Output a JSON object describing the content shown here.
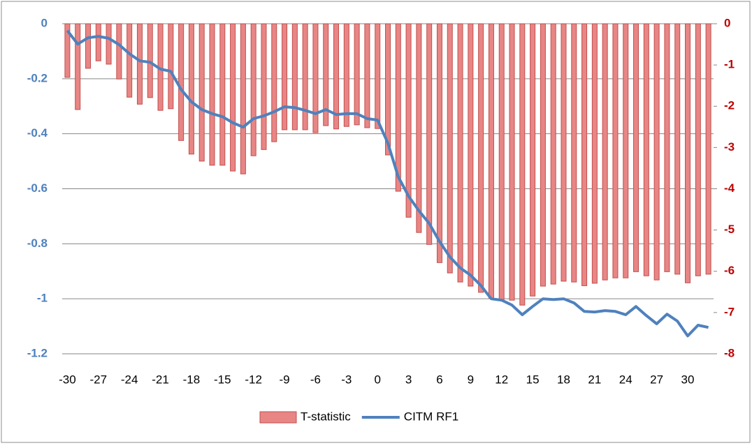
{
  "chart_data": {
    "type": "bar-line",
    "categories": [
      -30,
      null,
      null,
      -27,
      null,
      null,
      -24,
      null,
      null,
      -21,
      null,
      null,
      -18,
      null,
      null,
      -15,
      null,
      null,
      -12,
      null,
      null,
      -9,
      null,
      null,
      -6,
      null,
      null,
      -3,
      null,
      null,
      0,
      null,
      null,
      3,
      null,
      null,
      6,
      null,
      null,
      9,
      null,
      null,
      12,
      null,
      null,
      15,
      null,
      null,
      18,
      null,
      null,
      21,
      null,
      null,
      24,
      null,
      null,
      27,
      null,
      null,
      30,
      null,
      null
    ],
    "series": [
      {
        "name": "T-statistic",
        "type": "bar",
        "axis": "y2",
        "color": "#e88585",
        "edge": "#c0504d",
        "values": [
          -1.3,
          -2.08,
          -1.08,
          -0.9,
          -0.98,
          -1.34,
          -1.78,
          -1.95,
          -1.79,
          -2.1,
          -2.06,
          -2.83,
          -3.16,
          -3.33,
          -3.43,
          -3.43,
          -3.57,
          -3.64,
          -3.2,
          -3.05,
          -2.86,
          -2.57,
          -2.57,
          -2.57,
          -2.64,
          -2.47,
          -2.55,
          -2.49,
          -2.45,
          -2.52,
          -2.54,
          -3.18,
          -4.06,
          -4.69,
          -5.06,
          -5.35,
          -5.79,
          -6.04,
          -6.26,
          -6.36,
          -6.51,
          -6.65,
          -6.68,
          -6.7,
          -6.82,
          -6.6,
          -6.36,
          -6.31,
          -6.24,
          -6.26,
          -6.35,
          -6.29,
          -6.21,
          -6.16,
          -6.16,
          -6.01,
          -6.11,
          -6.21,
          -6.01,
          -6.07,
          -6.28,
          -6.11,
          -6.07
        ]
      },
      {
        "name": "CITM RF1",
        "type": "line",
        "axis": "y",
        "color": "#4f81bd",
        "values": [
          -0.025,
          -0.074,
          -0.051,
          -0.046,
          -0.053,
          -0.076,
          -0.109,
          -0.135,
          -0.14,
          -0.165,
          -0.173,
          -0.239,
          -0.284,
          -0.312,
          -0.327,
          -0.338,
          -0.36,
          -0.376,
          -0.345,
          -0.335,
          -0.32,
          -0.302,
          -0.305,
          -0.315,
          -0.327,
          -0.312,
          -0.33,
          -0.327,
          -0.327,
          -0.345,
          -0.35,
          -0.434,
          -0.556,
          -0.627,
          -0.68,
          -0.726,
          -0.792,
          -0.848,
          -0.888,
          -0.914,
          -0.952,
          -1.0,
          -1.005,
          -1.023,
          -1.058,
          -1.028,
          -1.0,
          -1.003,
          -1.0,
          -1.015,
          -1.046,
          -1.048,
          -1.043,
          -1.046,
          -1.058,
          -1.028,
          -1.061,
          -1.091,
          -1.056,
          -1.081,
          -1.135,
          -1.096,
          -1.104
        ]
      }
    ],
    "ylim": [
      -1.2,
      0
    ],
    "yticks": [
      0,
      -0.2,
      -0.4,
      -0.6,
      -0.8,
      -1,
      -1.2
    ],
    "ycolor": "#4f81bd",
    "y2lim": [
      -8,
      0
    ],
    "y2ticks": [
      0,
      -1,
      -2,
      -3,
      -4,
      -5,
      -6,
      -7,
      -8
    ],
    "y2color": "#c00000",
    "grid": true,
    "legend": "bottom"
  }
}
